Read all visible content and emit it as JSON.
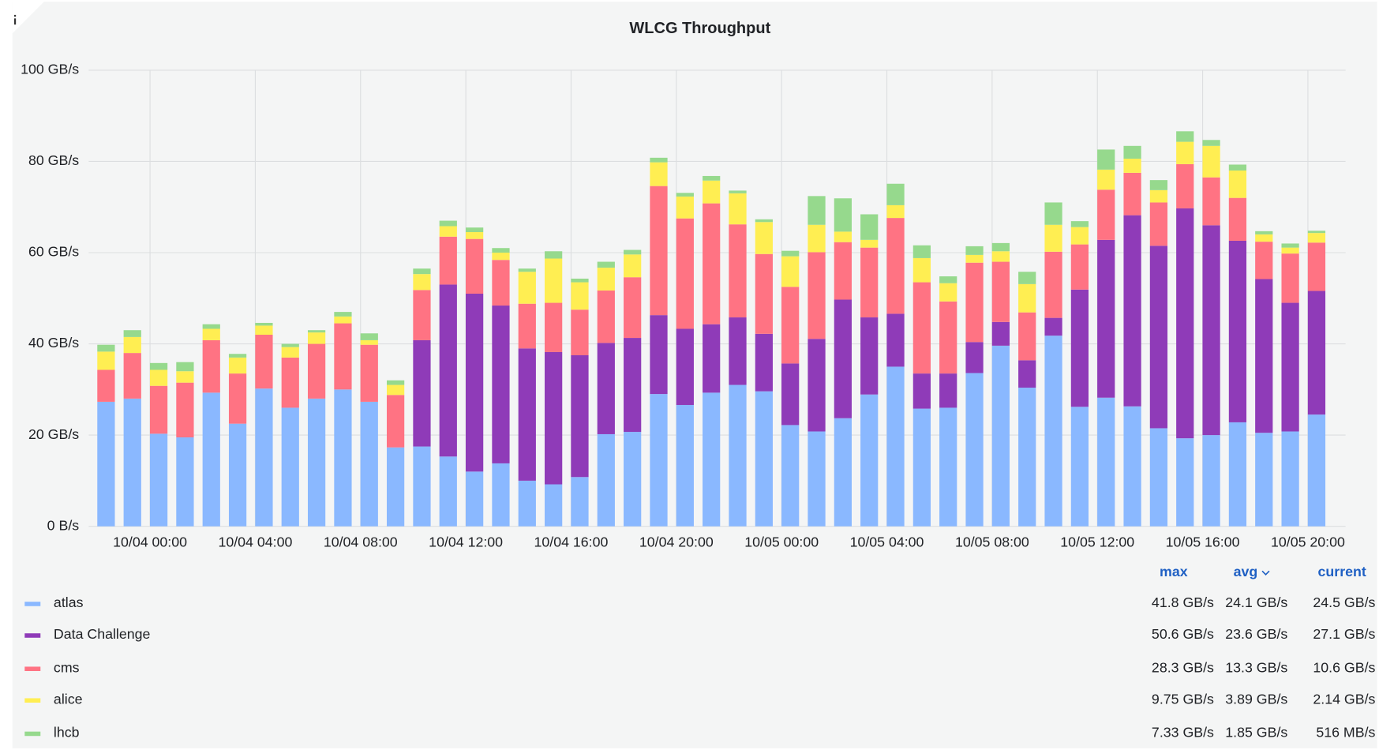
{
  "chart_data": {
    "type": "stacked_bar",
    "title": "WLCG Throughput",
    "x": [
      -1.67,
      -0.67,
      0.33,
      1.33,
      2.33,
      3.33,
      4.33,
      5.33,
      6.33,
      7.33,
      8.33,
      9.33,
      10.33,
      11.33,
      12.33,
      13.33,
      14.33,
      15.33,
      16.33,
      17.33,
      18.33,
      19.33,
      20.33,
      21.33,
      22.33,
      23.33,
      24.33,
      25.33,
      26.33,
      27.33,
      28.33,
      29.33,
      30.33,
      31.33,
      32.33,
      33.33,
      34.33,
      35.33,
      36.33,
      37.33,
      38.33,
      39.33,
      40.33,
      41.33,
      42.33,
      43.33,
      44.33
    ],
    "xlim": [
      -2.33,
      45.43
    ],
    "xticks": [
      {
        "value": 0,
        "label": "10/04 00:00"
      },
      {
        "value": 4,
        "label": "10/04 04:00"
      },
      {
        "value": 8,
        "label": "10/04 08:00"
      },
      {
        "value": 12,
        "label": "10/04 12:00"
      },
      {
        "value": 16,
        "label": "10/04 16:00"
      },
      {
        "value": 20,
        "label": "10/04 20:00"
      },
      {
        "value": 24,
        "label": "10/05 00:00"
      },
      {
        "value": 28,
        "label": "10/05 04:00"
      },
      {
        "value": 32,
        "label": "10/05 08:00"
      },
      {
        "value": 36,
        "label": "10/05 12:00"
      },
      {
        "value": 40,
        "label": "10/05 16:00"
      },
      {
        "value": 44,
        "label": "10/05 20:00"
      }
    ],
    "ylim": [
      0,
      100
    ],
    "yticks": [
      {
        "value": 0,
        "label": "0 B/s"
      },
      {
        "value": 20,
        "label": "20 GB/s"
      },
      {
        "value": 40,
        "label": "40 GB/s"
      },
      {
        "value": 60,
        "label": "60 GB/s"
      },
      {
        "value": 80,
        "label": "80 GB/s"
      },
      {
        "value": 100,
        "label": "100 GB/s"
      }
    ],
    "grid": true,
    "legend_columns": [
      "max",
      "avg",
      "current"
    ],
    "series": [
      {
        "name": "atlas",
        "color": "#8ab8ff",
        "stats": [
          "41.8 GB/s",
          "24.1 GB/s",
          "24.5 GB/s"
        ],
        "values": [
          27.3,
          28,
          20.3,
          19.5,
          29.3,
          22.5,
          30.2,
          26,
          28,
          30,
          27.3,
          17.3,
          17.5,
          15.3,
          12,
          13.8,
          10,
          9.2,
          10.8,
          20.2,
          20.7,
          29,
          26.6,
          29.3,
          31,
          29.6,
          22.2,
          20.8,
          23.7,
          28.9,
          35,
          25.8,
          26,
          33.6,
          39.6,
          30.4,
          41.8,
          26.2,
          28.2,
          26.3,
          21.5,
          19.3,
          20,
          22.8,
          20.5,
          20.8,
          24.5
        ]
      },
      {
        "name": "Data Challenge",
        "color": "#8f3bb8",
        "stats": [
          "50.6 GB/s",
          "23.6 GB/s",
          "27.1 GB/s"
        ],
        "values": [
          0,
          0,
          0,
          0,
          0,
          0,
          0,
          0,
          0,
          0,
          0,
          0,
          23.3,
          37.7,
          39,
          34.6,
          29,
          29,
          26.7,
          20,
          20.6,
          17.3,
          16.7,
          15,
          14.8,
          12.6,
          13.5,
          20.3,
          26,
          16.9,
          11.6,
          7.7,
          7.5,
          6.8,
          5.2,
          6,
          3.9,
          25.7,
          34.6,
          41.9,
          40,
          50.4,
          46,
          39.8,
          33.7,
          28.2,
          27.1
        ]
      },
      {
        "name": "cms",
        "color": "#ff7383",
        "stats": [
          "28.3 GB/s",
          "13.3 GB/s",
          "10.6 GB/s"
        ],
        "values": [
          7,
          10,
          10.5,
          12,
          11.5,
          11,
          11.8,
          11,
          12,
          14.5,
          12.5,
          11.5,
          11,
          10.5,
          12,
          10,
          9.8,
          10.8,
          10,
          11.5,
          13.3,
          28.3,
          24.2,
          26.5,
          20.4,
          17.5,
          16.8,
          19,
          12.6,
          15.3,
          21,
          20,
          15.8,
          17.4,
          13.2,
          10.5,
          14.5,
          9.9,
          11,
          9.3,
          9.5,
          9.7,
          10.5,
          9.4,
          8.2,
          10.8,
          10.6
        ]
      },
      {
        "name": "alice",
        "color": "#ffee52",
        "stats": [
          "9.75 GB/s",
          "3.89 GB/s",
          "2.14 GB/s"
        ],
        "values": [
          4,
          3.5,
          3.5,
          2.5,
          2.5,
          3.5,
          2,
          2.3,
          2.5,
          1.5,
          1,
          2.2,
          3.5,
          2.3,
          1.5,
          1.6,
          7,
          9.7,
          6,
          5,
          5,
          5.2,
          4.8,
          5,
          6.8,
          7,
          6.7,
          6,
          2.3,
          1.7,
          2.8,
          5.3,
          4,
          1.7,
          2.3,
          6.2,
          5.9,
          3.8,
          4.4,
          3.1,
          2.7,
          4.9,
          6.9,
          6,
          1.6,
          1.3,
          2.1
        ]
      },
      {
        "name": "lhcb",
        "color": "#96d98d",
        "stats": [
          "7.33 GB/s",
          "1.85 GB/s",
          "516 MB/s"
        ],
        "values": [
          1.5,
          1.5,
          1.5,
          2,
          1,
          0.8,
          0.6,
          0.7,
          0.5,
          1,
          1.5,
          1,
          1.2,
          1.2,
          1,
          1,
          0.7,
          1.6,
          0.8,
          1.3,
          1,
          1,
          0.8,
          1,
          0.6,
          0.6,
          1.2,
          6.3,
          7.3,
          5.6,
          4.7,
          2.8,
          1.5,
          1.9,
          1.8,
          2.7,
          4.9,
          1.3,
          4.4,
          2.8,
          2.2,
          2.3,
          1.3,
          1.3,
          0.7,
          0.9,
          0.5
        ]
      }
    ]
  }
}
